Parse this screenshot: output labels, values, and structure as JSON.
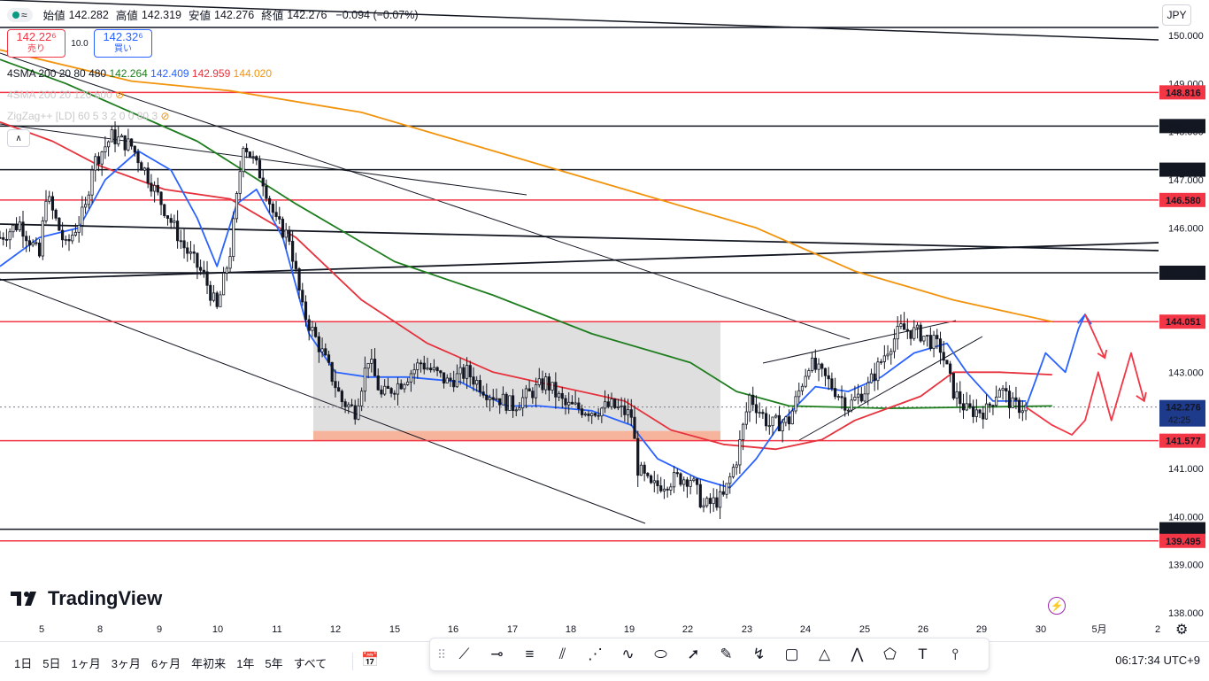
{
  "header": {
    "ohlc": [
      {
        "label": "始値",
        "value": "142.282"
      },
      {
        "label": "高値",
        "value": "142.319"
      },
      {
        "label": "安値",
        "value": "142.276"
      },
      {
        "label": "終値",
        "value": "142.276"
      }
    ],
    "change": "−0.094 (−0.07%)",
    "currency": "JPY"
  },
  "trade": {
    "sell_price": "142.22⁶",
    "sell_label": "売り",
    "spread": "10.0",
    "buy_price": "142.32⁶",
    "buy_label": "買い"
  },
  "indicators": {
    "sma1_name": "4SMA 200 20 80 480",
    "sma1_values": [
      "142.264",
      "142.409",
      "142.959",
      "144.020"
    ],
    "sma2_name": "4SMA 200 20 120 600",
    "zigzag_name": "ZigZag++ [LD] 60 5 3 2 0 0 80 3"
  },
  "colors": {
    "up": "#089981",
    "green_ma": "#1e7d1e",
    "blue_ma": "#2962ff",
    "red_ma": "#e5323d",
    "orange_ma": "#f2930c",
    "level_red": "#f23645",
    "box_fill": "#dcdcdc",
    "box_band": "#f7b49c"
  },
  "chart_data": {
    "type": "candlestick",
    "ylim": [
      137.8,
      150.5
    ],
    "y_ticks": [
      "150.000",
      "149.000",
      "148.000",
      "147.000",
      "146.000",
      "145.000",
      "144.000",
      "143.000",
      "142.000",
      "141.000",
      "140.000",
      "139.000",
      "138.000"
    ],
    "x_labels": [
      "5",
      "8",
      "9",
      "10",
      "11",
      "12",
      "15",
      "16",
      "17",
      "18",
      "19",
      "22",
      "23",
      "24",
      "25",
      "26",
      "29",
      "30",
      "5月",
      "2"
    ],
    "price_levels": [
      {
        "value": "148.816",
        "style": "red"
      },
      {
        "value": "148.116",
        "style": "black"
      },
      {
        "value": "147.210",
        "style": "black"
      },
      {
        "value": "146.580",
        "style": "red"
      },
      {
        "value": "145.068",
        "style": "black"
      },
      {
        "value": "144.051",
        "style": "red"
      },
      {
        "value": "141.577",
        "style": "red"
      },
      {
        "value": "139.737",
        "style": "black"
      },
      {
        "value": "139.495",
        "style": "red"
      }
    ],
    "last_price": {
      "value": "142.276",
      "countdown": "42:25"
    },
    "close_path": [
      [
        0,
        145.8
      ],
      [
        3,
        146.1
      ],
      [
        6,
        145.4
      ],
      [
        7,
        146.7
      ],
      [
        10,
        145.6
      ],
      [
        13,
        146.4
      ],
      [
        14,
        147.3
      ],
      [
        17,
        147.9
      ],
      [
        20,
        147.7
      ],
      [
        22,
        147.2
      ],
      [
        25,
        146.4
      ],
      [
        28,
        145.6
      ],
      [
        31,
        145.0
      ],
      [
        33,
        144.3
      ],
      [
        35,
        145.5
      ],
      [
        36,
        146.6
      ],
      [
        37,
        147.8
      ],
      [
        40,
        147.0
      ],
      [
        42,
        146.1
      ],
      [
        44,
        145.8
      ],
      [
        46,
        144.3
      ],
      [
        49,
        143.4
      ],
      [
        52,
        142.4
      ],
      [
        54,
        142.2
      ],
      [
        56,
        143.3
      ],
      [
        58,
        142.5
      ],
      [
        61,
        142.8
      ],
      [
        64,
        143.2
      ],
      [
        68,
        142.8
      ],
      [
        71,
        143.0
      ],
      [
        74,
        142.6
      ],
      [
        78,
        142.3
      ],
      [
        80,
        142.5
      ],
      [
        83,
        142.8
      ],
      [
        86,
        142.3
      ],
      [
        90,
        142.2
      ],
      [
        93,
        142.3
      ],
      [
        96,
        142.1
      ],
      [
        97,
        141.0
      ],
      [
        99,
        140.6
      ],
      [
        103,
        140.8
      ],
      [
        105,
        140.8
      ],
      [
        107,
        140.2
      ],
      [
        110,
        140.4
      ],
      [
        112,
        141.2
      ],
      [
        114,
        142.5
      ],
      [
        117,
        141.9
      ],
      [
        120,
        142.0
      ],
      [
        123,
        143.2
      ],
      [
        126,
        142.8
      ],
      [
        129,
        142.3
      ],
      [
        132,
        142.7
      ],
      [
        135,
        143.5
      ],
      [
        137,
        143.9
      ],
      [
        140,
        143.8
      ],
      [
        143,
        143.5
      ],
      [
        145,
        142.6
      ],
      [
        147,
        142.2
      ],
      [
        150,
        142.2
      ],
      [
        152,
        142.7
      ],
      [
        154,
        142.3
      ],
      [
        156,
        142.276
      ]
    ],
    "forecast_blue": [
      [
        156,
        142.276
      ],
      [
        159,
        143.4
      ],
      [
        162,
        143.0
      ],
      [
        164,
        143.9
      ],
      [
        165,
        144.2
      ]
    ],
    "forecast_red": [
      [
        156,
        142.276
      ],
      [
        160,
        141.9
      ],
      [
        163,
        141.7
      ],
      [
        165,
        142.0
      ],
      [
        167,
        143.0
      ],
      [
        169,
        142.0
      ],
      [
        172,
        143.4
      ],
      [
        174,
        142.4
      ]
    ]
  },
  "bottom": {
    "logo": "TradingView",
    "ranges": [
      "1日",
      "5日",
      "1ヶ月",
      "3ヶ月",
      "6ヶ月",
      "年初来",
      "1年",
      "5年",
      "すべて"
    ],
    "clock": "06:17:34 UTC+9"
  },
  "draw_tools": [
    "trend-line",
    "horizontal-ray",
    "parallel-channel",
    "pitchfork",
    "gann-fan",
    "curve",
    "ellipse",
    "arrow",
    "brush",
    "path",
    "rectangle",
    "triangle",
    "xabcd",
    "elliott-wave",
    "text",
    "vertical-line"
  ]
}
